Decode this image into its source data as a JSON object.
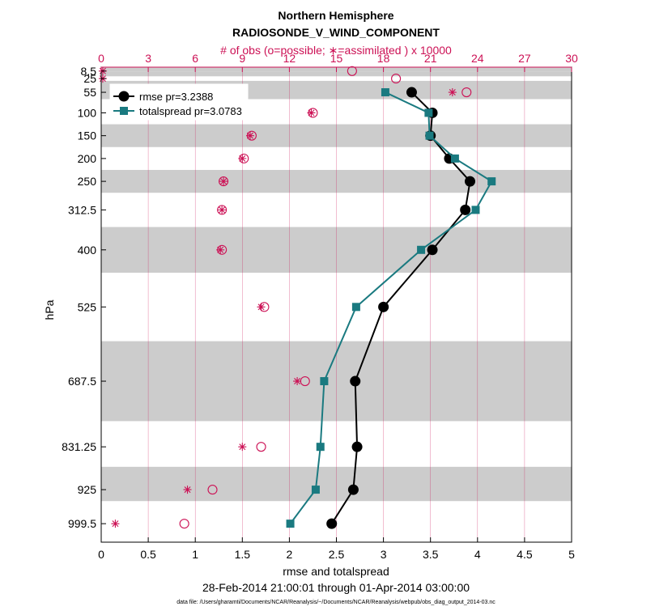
{
  "chart_data": {
    "type": "line",
    "title": "Northern Hemisphere",
    "subtitle": "RADIOSONDE_V_WIND_COMPONENT",
    "top_axis_label": "# of obs (o=possible; ∗=assimilated ) x 10000",
    "xlabel": "rmse and totalspread",
    "ylabel": "hPa",
    "date_range": "28-Feb-2014 21:00:01 through 01-Apr-2014 03:00:00",
    "footnote": "data file: /Users/gharamti/Documents/NCAR/Reanalysis/~/Documents/NCAR/Reanalysis/webpub/obs_diag_output_2014-03.nc",
    "xlim": [
      0,
      5
    ],
    "x_ticks": [
      "0",
      "0.5",
      "1",
      "1.5",
      "2",
      "2.5",
      "3",
      "3.5",
      "4",
      "4.5",
      "5"
    ],
    "top_xlim": [
      0,
      30
    ],
    "top_ticks": [
      "0",
      "3",
      "6",
      "9",
      "12",
      "15",
      "18",
      "21",
      "24",
      "27",
      "30"
    ],
    "levels": [
      "8.5",
      "25",
      "55",
      "100",
      "150",
      "200",
      "250",
      "312.5",
      "400",
      "525",
      "687.5",
      "831.25",
      "925",
      "999.5"
    ],
    "level_values": [
      8.5,
      25,
      55,
      100,
      150,
      200,
      250,
      312.5,
      400,
      525,
      687.5,
      831.25,
      925,
      999.5
    ],
    "ylim": [
      1040,
      0
    ],
    "bands": [
      [
        0,
        10
      ],
      [
        10,
        20
      ],
      [
        30,
        70
      ],
      [
        125,
        175
      ],
      [
        225,
        275
      ],
      [
        350,
        450
      ],
      [
        600,
        775
      ],
      [
        875,
        950
      ]
    ],
    "series": [
      {
        "name": "rmse",
        "legend": "rmse pr=3.2388",
        "color": "#000000",
        "marker": "circle",
        "values": [
          null,
          null,
          3.3,
          3.52,
          3.5,
          3.7,
          3.92,
          3.87,
          3.52,
          3.0,
          2.7,
          2.72,
          2.68,
          2.45
        ]
      },
      {
        "name": "totalspread",
        "legend": "totalspread pr=3.0783",
        "color": "#1a7a80",
        "marker": "square",
        "values": [
          null,
          null,
          3.02,
          3.48,
          3.49,
          3.76,
          4.15,
          3.98,
          3.4,
          2.71,
          2.37,
          2.33,
          2.28,
          2.01
        ]
      }
    ],
    "obs_possible": [
      16,
      18.8,
      23.3,
      13.5,
      9.6,
      9.1,
      7.8,
      7.7,
      7.7,
      10.4,
      13.0,
      10.2,
      7.1,
      5.3
    ],
    "obs_assimilated": [
      0.1,
      0.1,
      22.4,
      13.4,
      9.5,
      9.0,
      7.8,
      7.7,
      7.6,
      10.2,
      12.5,
      9.0,
      5.5,
      0.9
    ],
    "obs_color": "#cc1155"
  }
}
